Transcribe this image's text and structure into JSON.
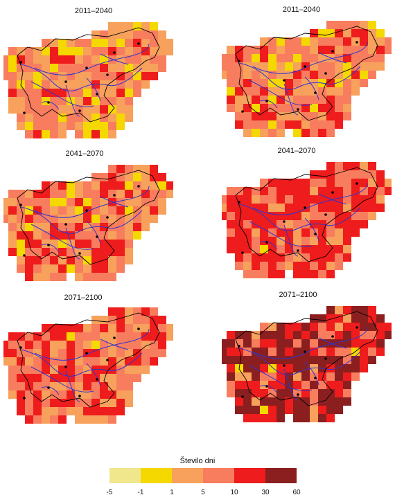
{
  "panels": [
    {
      "title": "2011–2040"
    },
    {
      "title": "2011–2040"
    },
    {
      "title": "2041–2070"
    },
    {
      "title": "2041–2070"
    },
    {
      "title": "2071–2100"
    },
    {
      "title": "2071–2100"
    }
  ],
  "legend": {
    "title": "Število dni",
    "colors": [
      "#f0e68c",
      "#f5d800",
      "#f7a15c",
      "#f87d5e",
      "#ee1c1c",
      "#8b1f1f"
    ],
    "ticks": [
      "-5",
      "-1",
      "1",
      "5",
      "10",
      "30",
      "60"
    ]
  },
  "colors": {
    "river": "#3333cc",
    "border": "#000000",
    "station": "#000000"
  }
}
